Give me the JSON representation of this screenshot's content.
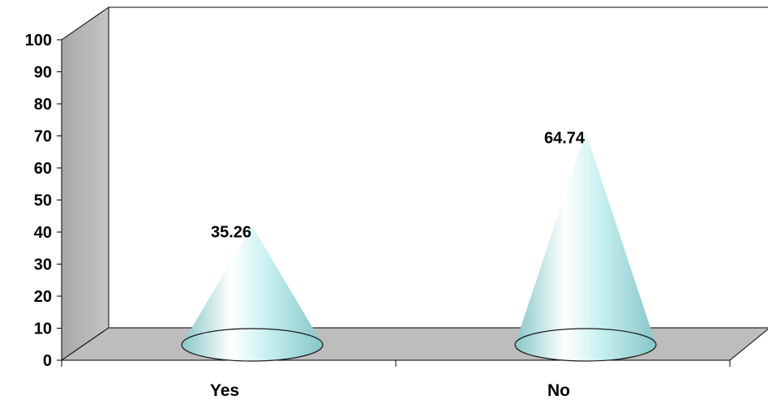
{
  "chart_data": {
    "type": "bar",
    "style": "3d-cone",
    "categories": [
      "Yes",
      "No"
    ],
    "values": [
      35.26,
      64.74
    ],
    "data_labels": [
      "35.26",
      "64.74"
    ],
    "ylim": [
      0,
      100
    ],
    "yticks": [
      0,
      10,
      20,
      30,
      40,
      50,
      60,
      70,
      80,
      90,
      100
    ],
    "grid": false,
    "legend": "none",
    "colors": {
      "cone_light": "#ffffff",
      "cone_mid": "#c9f1f1",
      "cone_dark": "#86c6c8",
      "wall": "#b3b3b3",
      "wall_side": "#999999",
      "floor": "#bdbdbd"
    }
  }
}
